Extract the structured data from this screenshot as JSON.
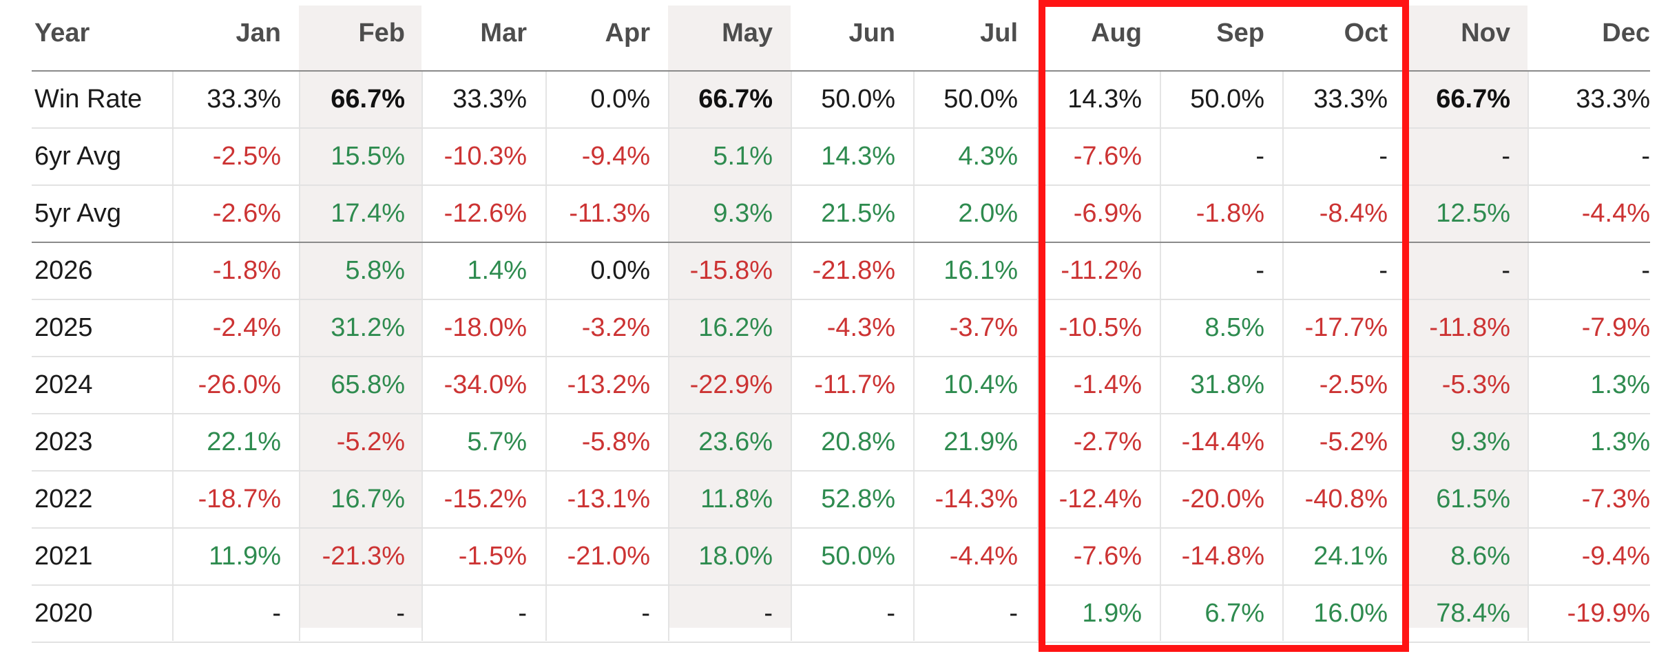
{
  "table": {
    "columns": [
      "Year",
      "Jan",
      "Feb",
      "Mar",
      "Apr",
      "May",
      "Jun",
      "Jul",
      "Aug",
      "Sep",
      "Oct",
      "Nov",
      "Dec"
    ],
    "rows": [
      {
        "label": "Win Rate",
        "cells": [
          {
            "v": "33.3%"
          },
          {
            "v": "66.7%",
            "bold": true
          },
          {
            "v": "33.3%"
          },
          {
            "v": "0.0%"
          },
          {
            "v": "66.7%",
            "bold": true
          },
          {
            "v": "50.0%"
          },
          {
            "v": "50.0%"
          },
          {
            "v": "14.3%"
          },
          {
            "v": "50.0%"
          },
          {
            "v": "33.3%"
          },
          {
            "v": "66.7%",
            "bold": true
          },
          {
            "v": "33.3%"
          }
        ]
      },
      {
        "label": "6yr Avg",
        "cells": [
          {
            "v": "-2.5%",
            "t": "neg"
          },
          {
            "v": "15.5%",
            "t": "pos"
          },
          {
            "v": "-10.3%",
            "t": "neg"
          },
          {
            "v": "-9.4%",
            "t": "neg"
          },
          {
            "v": "5.1%",
            "t": "pos"
          },
          {
            "v": "14.3%",
            "t": "pos"
          },
          {
            "v": "4.3%",
            "t": "pos"
          },
          {
            "v": "-7.6%",
            "t": "neg"
          },
          {
            "v": "-"
          },
          {
            "v": "-"
          },
          {
            "v": "-"
          },
          {
            "v": "-"
          }
        ]
      },
      {
        "label": "5yr Avg",
        "cells": [
          {
            "v": "-2.6%",
            "t": "neg"
          },
          {
            "v": "17.4%",
            "t": "pos"
          },
          {
            "v": "-12.6%",
            "t": "neg"
          },
          {
            "v": "-11.3%",
            "t": "neg"
          },
          {
            "v": "9.3%",
            "t": "pos"
          },
          {
            "v": "21.5%",
            "t": "pos"
          },
          {
            "v": "2.0%",
            "t": "pos"
          },
          {
            "v": "-6.9%",
            "t": "neg"
          },
          {
            "v": "-1.8%",
            "t": "neg"
          },
          {
            "v": "-8.4%",
            "t": "neg"
          },
          {
            "v": "12.5%",
            "t": "pos"
          },
          {
            "v": "-4.4%",
            "t": "neg"
          }
        ]
      },
      {
        "label": "2026",
        "cells": [
          {
            "v": "-1.8%",
            "t": "neg"
          },
          {
            "v": "5.8%",
            "t": "pos"
          },
          {
            "v": "1.4%",
            "t": "pos"
          },
          {
            "v": "0.0%"
          },
          {
            "v": "-15.8%",
            "t": "neg"
          },
          {
            "v": "-21.8%",
            "t": "neg"
          },
          {
            "v": "16.1%",
            "t": "pos"
          },
          {
            "v": "-11.2%",
            "t": "neg"
          },
          {
            "v": "-"
          },
          {
            "v": "-"
          },
          {
            "v": "-"
          },
          {
            "v": "-"
          }
        ]
      },
      {
        "label": "2025",
        "cells": [
          {
            "v": "-2.4%",
            "t": "neg"
          },
          {
            "v": "31.2%",
            "t": "pos"
          },
          {
            "v": "-18.0%",
            "t": "neg"
          },
          {
            "v": "-3.2%",
            "t": "neg"
          },
          {
            "v": "16.2%",
            "t": "pos"
          },
          {
            "v": "-4.3%",
            "t": "neg"
          },
          {
            "v": "-3.7%",
            "t": "neg"
          },
          {
            "v": "-10.5%",
            "t": "neg"
          },
          {
            "v": "8.5%",
            "t": "pos"
          },
          {
            "v": "-17.7%",
            "t": "neg"
          },
          {
            "v": "-11.8%",
            "t": "neg"
          },
          {
            "v": "-7.9%",
            "t": "neg"
          }
        ]
      },
      {
        "label": "2024",
        "cells": [
          {
            "v": "-26.0%",
            "t": "neg"
          },
          {
            "v": "65.8%",
            "t": "pos"
          },
          {
            "v": "-34.0%",
            "t": "neg"
          },
          {
            "v": "-13.2%",
            "t": "neg"
          },
          {
            "v": "-22.9%",
            "t": "neg"
          },
          {
            "v": "-11.7%",
            "t": "neg"
          },
          {
            "v": "10.4%",
            "t": "pos"
          },
          {
            "v": "-1.4%",
            "t": "neg"
          },
          {
            "v": "31.8%",
            "t": "pos"
          },
          {
            "v": "-2.5%",
            "t": "neg"
          },
          {
            "v": "-5.3%",
            "t": "neg"
          },
          {
            "v": "1.3%",
            "t": "pos"
          }
        ]
      },
      {
        "label": "2023",
        "cells": [
          {
            "v": "22.1%",
            "t": "pos"
          },
          {
            "v": "-5.2%",
            "t": "neg"
          },
          {
            "v": "5.7%",
            "t": "pos"
          },
          {
            "v": "-5.8%",
            "t": "neg"
          },
          {
            "v": "23.6%",
            "t": "pos"
          },
          {
            "v": "20.8%",
            "t": "pos"
          },
          {
            "v": "21.9%",
            "t": "pos"
          },
          {
            "v": "-2.7%",
            "t": "neg"
          },
          {
            "v": "-14.4%",
            "t": "neg"
          },
          {
            "v": "-5.2%",
            "t": "neg"
          },
          {
            "v": "9.3%",
            "t": "pos"
          },
          {
            "v": "1.3%",
            "t": "pos"
          }
        ]
      },
      {
        "label": "2022",
        "cells": [
          {
            "v": "-18.7%",
            "t": "neg"
          },
          {
            "v": "16.7%",
            "t": "pos"
          },
          {
            "v": "-15.2%",
            "t": "neg"
          },
          {
            "v": "-13.1%",
            "t": "neg"
          },
          {
            "v": "11.8%",
            "t": "pos"
          },
          {
            "v": "52.8%",
            "t": "pos"
          },
          {
            "v": "-14.3%",
            "t": "neg"
          },
          {
            "v": "-12.4%",
            "t": "neg"
          },
          {
            "v": "-20.0%",
            "t": "neg"
          },
          {
            "v": "-40.8%",
            "t": "neg"
          },
          {
            "v": "61.5%",
            "t": "pos"
          },
          {
            "v": "-7.3%",
            "t": "neg"
          }
        ]
      },
      {
        "label": "2021",
        "cells": [
          {
            "v": "11.9%",
            "t": "pos"
          },
          {
            "v": "-21.3%",
            "t": "neg"
          },
          {
            "v": "-1.5%",
            "t": "neg"
          },
          {
            "v": "-21.0%",
            "t": "neg"
          },
          {
            "v": "18.0%",
            "t": "pos"
          },
          {
            "v": "50.0%",
            "t": "pos"
          },
          {
            "v": "-4.4%",
            "t": "neg"
          },
          {
            "v": "-7.6%",
            "t": "neg"
          },
          {
            "v": "-14.8%",
            "t": "neg"
          },
          {
            "v": "24.1%",
            "t": "pos"
          },
          {
            "v": "8.6%",
            "t": "pos"
          },
          {
            "v": "-9.4%",
            "t": "neg"
          }
        ]
      },
      {
        "label": "2020",
        "cells": [
          {
            "v": "-"
          },
          {
            "v": "-"
          },
          {
            "v": "-"
          },
          {
            "v": "-"
          },
          {
            "v": "-"
          },
          {
            "v": "-"
          },
          {
            "v": "-"
          },
          {
            "v": "1.9%",
            "t": "pos"
          },
          {
            "v": "6.7%",
            "t": "pos"
          },
          {
            "v": "16.0%",
            "t": "pos"
          },
          {
            "v": "78.4%",
            "t": "pos"
          },
          {
            "v": "-19.9%",
            "t": "neg"
          }
        ]
      }
    ]
  },
  "colors": {
    "positive": "#2e8b4f",
    "negative": "#cc3333",
    "highlight_column_bg": "#f3f0ef",
    "annotation_box": "#ff1414"
  },
  "highlighted_columns": [
    "Feb",
    "May",
    "Nov"
  ],
  "annotation": {
    "boxed_columns": [
      "Aug",
      "Sep",
      "Oct"
    ]
  }
}
